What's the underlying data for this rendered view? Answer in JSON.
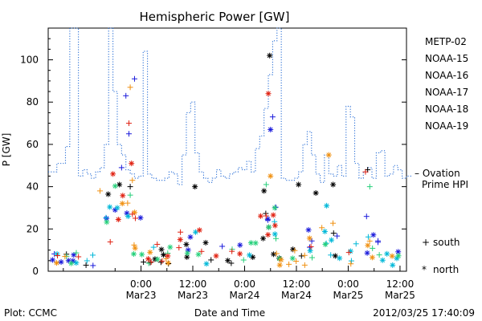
{
  "chart_data": {
    "type": "scatter",
    "title": "Hemispheric Power [GW]",
    "xlabel": "Date and Time",
    "ylabel": "P [GW]",
    "ylim": [
      0,
      115
    ],
    "xlim_hours": [
      -21.5,
      61.5
    ],
    "yticks": [
      0,
      20,
      40,
      60,
      80,
      100
    ],
    "xticks": [
      {
        "hour": 0,
        "time": "0:00",
        "date": "Mar23"
      },
      {
        "hour": 12,
        "time": "12:00",
        "date": "Mar23"
      },
      {
        "hour": 24,
        "time": "0:00",
        "date": "Mar24"
      },
      {
        "hour": 36,
        "time": "12:00",
        "date": "Mar24"
      },
      {
        "hour": 48,
        "time": "0:00",
        "date": "Mar25"
      },
      {
        "hour": 60,
        "time": "12:00",
        "date": "Mar25"
      }
    ],
    "ovation_label": [
      "– Ovation",
      "Prime HPI"
    ],
    "ovation_color": "#2a6fd6",
    "ovation": {
      "x": [
        -21.5,
        -19.5,
        -17.5,
        -16.5,
        -16.0,
        -15.5,
        -14.5,
        -13.5,
        -12.5,
        -11.5,
        -10.5,
        -9.5,
        -8.5,
        -7.5,
        -6.5,
        -5.5,
        -4.5,
        -3.5,
        -2.5,
        -1.5,
        -0.5,
        0.5,
        1.5,
        2.5,
        3.5,
        4.5,
        5.5,
        6.5,
        7.5,
        8.5,
        9.5,
        10.5,
        11.5,
        12.5,
        13.5,
        14.5,
        15.5,
        16.5,
        17.5,
        18.5,
        19.5,
        20.5,
        21.5,
        22.5,
        23.5,
        24.5,
        25.5,
        26.5,
        27.5,
        28.5,
        29.5,
        30.5,
        31.5,
        32.5,
        33.5,
        34.5,
        35.5,
        36.5,
        37.5,
        38.5,
        39.5,
        40.5,
        41.5,
        42.5,
        43.5,
        44.5,
        45.5,
        46.5,
        47.5,
        48.5,
        49.5,
        50.5,
        51.5,
        52.5,
        53.5,
        54.5,
        55.5,
        56.5,
        57.5,
        58.5,
        59.5,
        60.5,
        61.5
      ],
      "y": [
        47,
        51,
        59,
        115,
        115,
        115,
        45,
        48,
        46,
        44,
        47,
        49,
        60,
        115,
        85,
        60,
        55,
        48,
        46,
        44,
        45,
        104,
        46,
        44,
        43,
        43,
        44,
        47,
        46,
        41,
        55,
        75,
        80,
        56,
        47,
        44,
        42,
        44,
        48,
        45,
        44,
        46,
        47,
        49,
        48,
        52,
        47,
        58,
        64,
        77,
        93,
        109,
        115,
        44,
        43,
        43,
        44,
        47,
        60,
        66,
        55,
        46,
        42,
        55,
        46,
        45,
        50,
        45,
        78,
        73,
        51,
        44,
        47,
        49,
        44,
        56,
        57,
        45,
        46,
        50,
        48,
        44,
        45
      ]
    },
    "series": [
      {
        "name": "METP-02",
        "color": "#000000",
        "seed": 11,
        "special": [
          {
            "x": 29.8,
            "y": 102,
            "m": "*"
          },
          {
            "x": 28.5,
            "y": 38,
            "m": "*"
          },
          {
            "x": 36.5,
            "y": 41,
            "m": "*"
          },
          {
            "x": 52.5,
            "y": 48,
            "m": "+"
          },
          {
            "x": 40.5,
            "y": 37,
            "m": "*"
          },
          {
            "x": 44.5,
            "y": 41,
            "m": "*"
          },
          {
            "x": 12.5,
            "y": 40,
            "m": "*"
          },
          {
            "x": -5,
            "y": 41,
            "m": "*"
          },
          {
            "x": -2.5,
            "y": 40,
            "m": "+"
          }
        ]
      },
      {
        "name": "NOAA-15",
        "color": "#1a1adb",
        "seed": 23,
        "special": [
          {
            "x": -1.5,
            "y": 91,
            "m": "+"
          },
          {
            "x": -3.5,
            "y": 83,
            "m": "+"
          },
          {
            "x": -2.8,
            "y": 65,
            "m": "+"
          },
          {
            "x": -4.5,
            "y": 49,
            "m": "+"
          },
          {
            "x": 30.5,
            "y": 73,
            "m": "+"
          },
          {
            "x": 30,
            "y": 67,
            "m": "*"
          },
          {
            "x": -8,
            "y": 25,
            "m": "*"
          },
          {
            "x": -6,
            "y": 29,
            "m": "*"
          }
        ]
      },
      {
        "name": "NOAA-16",
        "color": "#00b8d8",
        "seed": 37,
        "special": [
          {
            "x": -5.5,
            "y": 30,
            "m": "*"
          },
          {
            "x": 43,
            "y": 31,
            "m": "*"
          },
          {
            "x": -3,
            "y": 26,
            "m": "*"
          }
        ]
      },
      {
        "name": "NOAA-17",
        "color": "#25d07a",
        "seed": 41,
        "special": [
          {
            "x": -2.5,
            "y": 36,
            "m": "+"
          },
          {
            "x": 29,
            "y": 41,
            "m": "+"
          },
          {
            "x": 53,
            "y": 40,
            "m": "+"
          },
          {
            "x": 31,
            "y": 30,
            "m": "*"
          }
        ]
      },
      {
        "name": "NOAA-18",
        "color": "#f09010",
        "seed": 53,
        "special": [
          {
            "x": -2.5,
            "y": 87,
            "m": "+"
          },
          {
            "x": -9.5,
            "y": 38,
            "m": "+"
          },
          {
            "x": 30,
            "y": 45,
            "m": "*"
          },
          {
            "x": 43.5,
            "y": 55,
            "m": "*"
          },
          {
            "x": -2,
            "y": 43,
            "m": "+"
          }
        ]
      },
      {
        "name": "NOAA-19",
        "color": "#e02010",
        "seed": 67,
        "special": [
          {
            "x": 29.5,
            "y": 84,
            "m": "*"
          },
          {
            "x": -2.8,
            "y": 70,
            "m": "+"
          },
          {
            "x": -2.2,
            "y": 51,
            "m": "*"
          },
          {
            "x": -6.5,
            "y": 46,
            "m": "*"
          },
          {
            "x": 52,
            "y": 47,
            "m": "+"
          },
          {
            "x": -2,
            "y": 27,
            "m": "+"
          }
        ]
      }
    ],
    "marker_legend": [
      {
        "symbol": "+",
        "label": "south"
      },
      {
        "symbol": "*",
        "label": "north"
      }
    ]
  },
  "footer": {
    "left": "Plot: CCMC",
    "center": "Date and Time",
    "right": "2012/03/25 17:40:09"
  }
}
